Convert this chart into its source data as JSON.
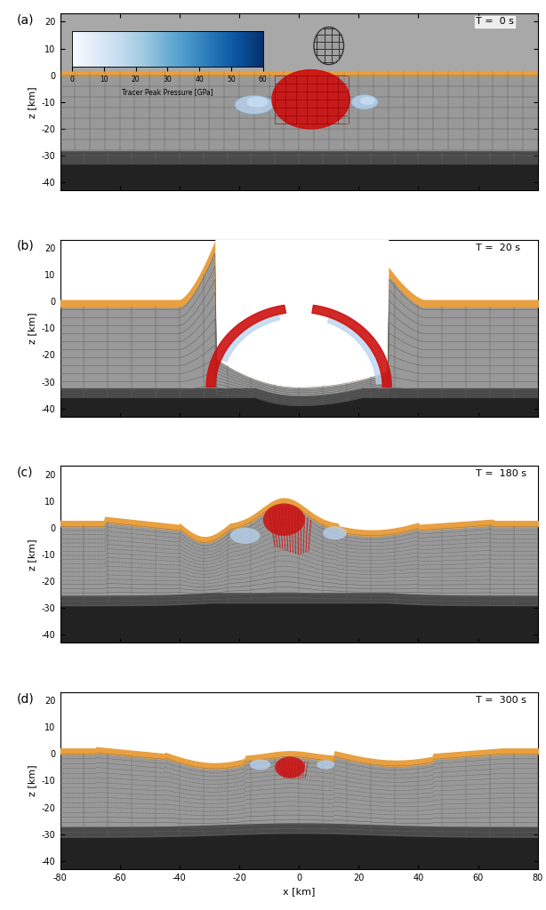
{
  "panels": [
    {
      "label": "a",
      "time": "T =  0 s"
    },
    {
      "label": "b",
      "time": "T =  20 s"
    },
    {
      "label": "c",
      "time": "T =  180 s"
    },
    {
      "label": "d",
      "time": "T =  300 s"
    }
  ],
  "xlim": [
    -80,
    80
  ],
  "ylim": [
    -43,
    23
  ],
  "xlabel": "x [km]",
  "ylabel": "z [km]",
  "xticks": [
    -80,
    -60,
    -40,
    -20,
    0,
    20,
    40,
    60,
    80
  ],
  "yticks": [
    -40,
    -30,
    -20,
    -10,
    0,
    10,
    20
  ],
  "colorbar_ticks": [
    0,
    10,
    20,
    30,
    40,
    50,
    60
  ],
  "colorbar_label": "Tracer Peak Pressure [GPa]",
  "color_dark_base": "#2e2e2e",
  "color_dark_mid": "#505050",
  "color_gray_main": "#a8a8a8",
  "color_gray_light": "#c0c0c0",
  "color_orange": "#e8a040",
  "color_grid": "#606060",
  "color_red": "#cc1010",
  "color_blue": "#7aaad0",
  "color_blue_light": "#b8d4f0"
}
